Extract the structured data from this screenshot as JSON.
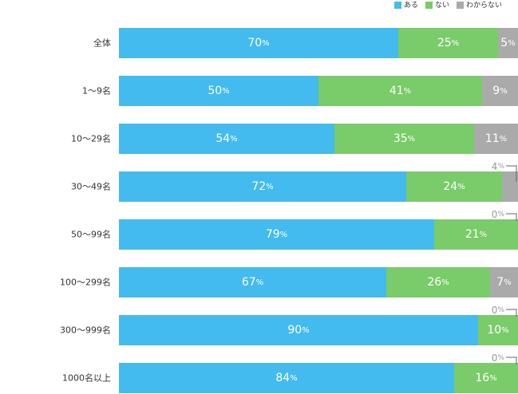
{
  "chart_data": {
    "type": "bar",
    "orientation": "horizontal",
    "stacked": true,
    "percent": true,
    "xlim": [
      0,
      100
    ],
    "legend_position": "top-right",
    "grid": false,
    "categories": [
      "全体",
      "1〜9名",
      "10〜29名",
      "30〜49名",
      "50〜99名",
      "100〜299名",
      "300〜999名",
      "1000名以上"
    ],
    "series": [
      {
        "name": "ある",
        "color": "#43bbee",
        "values": [
          70,
          50,
          54,
          72,
          79,
          67,
          90,
          84
        ]
      },
      {
        "name": "ない",
        "color": "#7acb69",
        "values": [
          25,
          41,
          35,
          24,
          21,
          26,
          10,
          16
        ]
      },
      {
        "name": "わからない",
        "color": "#aaaaaa",
        "values": [
          5,
          9,
          11,
          4,
          0,
          7,
          0,
          0
        ]
      }
    ],
    "unit": "%"
  }
}
